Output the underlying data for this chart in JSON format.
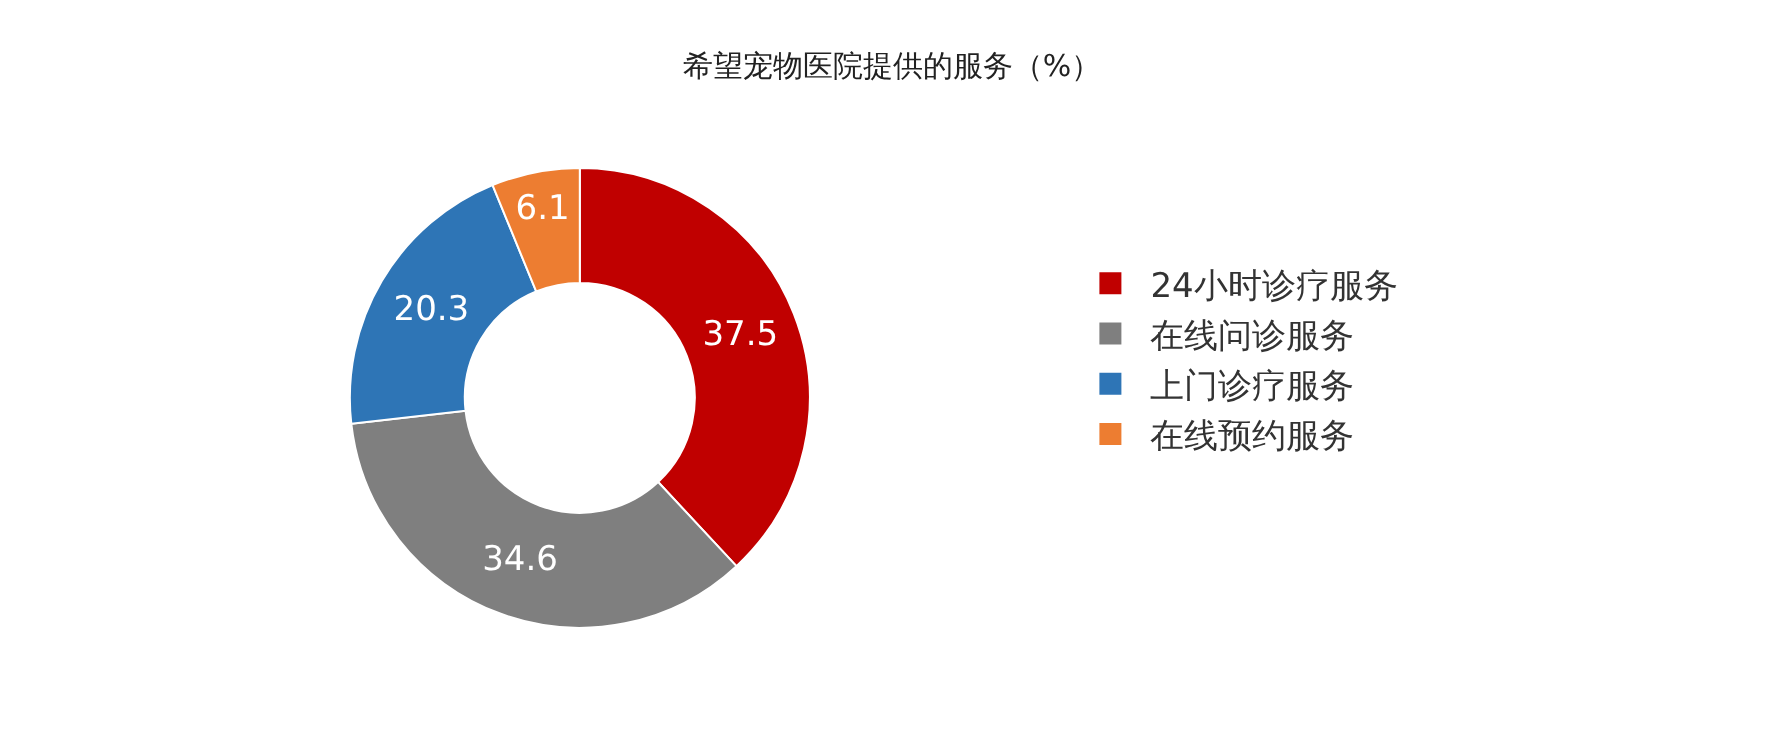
{
  "chart_data": {
    "type": "donut",
    "title": "希望宠物医院提供的服务（%）",
    "categories": [
      "24小时诊疗服务",
      "在线问诊服务",
      "上门诊疗服务",
      "在线预约服务"
    ],
    "values": [
      37.5,
      34.6,
      20.3,
      6.1
    ],
    "colors": [
      "#c00000",
      "#7f7f7f",
      "#2e75b6",
      "#ed7d31"
    ],
    "data_labels": true,
    "legend": "right"
  }
}
